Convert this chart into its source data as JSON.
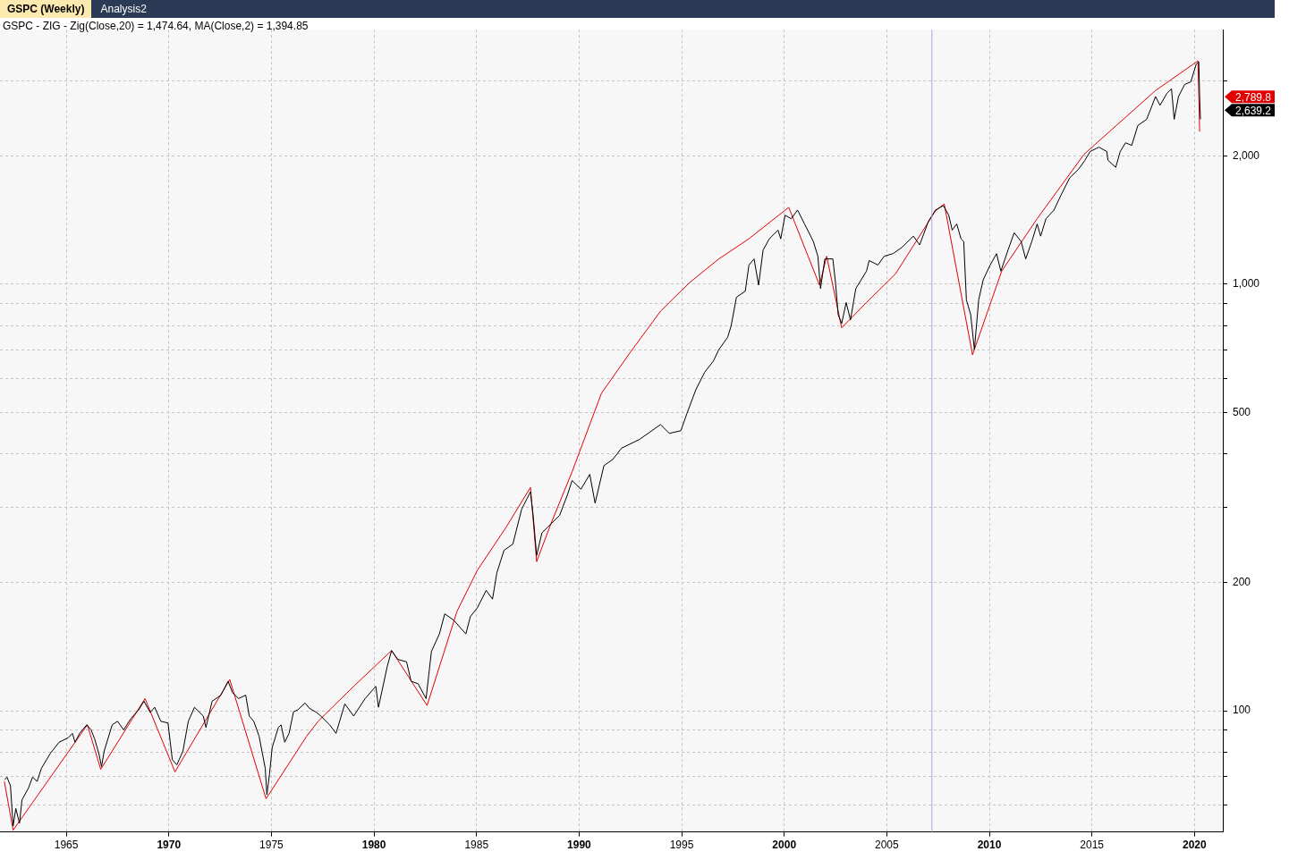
{
  "chart_data": {
    "type": "line",
    "title": "GSPC (Weekly)",
    "subtitle": "GSPC - ZIG - Zig(Close,20) = 1,474.64, MA(Close,2) = 1,394.85",
    "annotations": [
      "Analysis2",
      "2,789.8",
      "2,639.2"
    ],
    "log": "y",
    "grid": true,
    "xlim": [
      1961.77,
      2021.38
    ],
    "xticks": [
      1965,
      1970,
      1975,
      1980,
      1985,
      1990,
      1995,
      2000,
      2005,
      2010,
      2015,
      2020
    ],
    "ylim": [
      52,
      3950
    ],
    "yticks": [
      {
        "value": 60,
        "label": null
      },
      {
        "value": 70,
        "label": null
      },
      {
        "value": 80,
        "label": null
      },
      {
        "value": 90,
        "label": null
      },
      100,
      200,
      {
        "value": 300,
        "label": null
      },
      {
        "value": 400,
        "label": null
      },
      500,
      {
        "value": 600,
        "label": null
      },
      {
        "value": 700,
        "label": null
      },
      {
        "value": 800,
        "label": null
      },
      {
        "value": 900,
        "label": null
      },
      {
        "value": 1000,
        "label": "1,000"
      },
      {
        "value": 2000,
        "label": "2,000"
      },
      {
        "value": 3000,
        "label": null
      }
    ],
    "ref_lines": [
      {
        "axis": "x",
        "value": 2007.2,
        "color": "#a8a8e0"
      }
    ],
    "series": [
      {
        "color": "#000000",
        "x": [
          1962.0,
          1962.11,
          1962.28,
          1962.41,
          1962.54,
          1962.72,
          1962.84,
          1963.15,
          1963.36,
          1963.58,
          1963.79,
          1964.22,
          1964.65,
          1965.09,
          1965.3,
          1965.43,
          1965.65,
          1966.0,
          1966.21,
          1966.38,
          1966.59,
          1966.72,
          1966.85,
          1967.24,
          1967.5,
          1967.8,
          1968.15,
          1968.53,
          1968.79,
          1969.09,
          1969.31,
          1969.61,
          1969.96,
          1970.17,
          1970.39,
          1970.69,
          1970.95,
          1971.25,
          1971.68,
          1971.81,
          1972.11,
          1972.54,
          1972.89,
          1973.1,
          1973.4,
          1973.75,
          1973.92,
          1974.14,
          1974.4,
          1974.7,
          1974.78,
          1974.91,
          1975.04,
          1975.34,
          1975.47,
          1975.65,
          1975.86,
          1976.08,
          1976.29,
          1976.64,
          1976.85,
          1977.2,
          1977.41,
          1977.84,
          1978.15,
          1978.58,
          1979.01,
          1979.57,
          1980.09,
          1980.22,
          1980.65,
          1980.86,
          1981.16,
          1981.59,
          1981.81,
          1982.15,
          1982.54,
          1982.67,
          1982.8,
          1983.19,
          1983.45,
          1983.88,
          1984.48,
          1984.7,
          1985.04,
          1985.47,
          1985.78,
          1985.99,
          1986.34,
          1986.77,
          1987.2,
          1987.63,
          1987.76,
          1987.93,
          1988.19,
          1988.49,
          1989.05,
          1989.44,
          1989.66,
          1990.09,
          1990.52,
          1990.78,
          1991.21,
          1991.64,
          1992.07,
          1992.94,
          1993.97,
          1994.4,
          1994.96,
          1995.26,
          1995.69,
          1996.12,
          1996.55,
          1996.81,
          1997.24,
          1997.41,
          1997.67,
          1998.1,
          1998.28,
          1998.53,
          1998.75,
          1998.97,
          1999.27,
          1999.7,
          1999.83,
          2000.04,
          2000.34,
          2000.65,
          2000.99,
          2001.42,
          2001.64,
          2001.77,
          2001.98,
          2002.37,
          2002.5,
          2002.63,
          2002.8,
          2003.02,
          2003.23,
          2003.49,
          2004.01,
          2004.14,
          2004.57,
          2004.87,
          2005.3,
          2005.73,
          2006.3,
          2006.6,
          2007.03,
          2007.37,
          2007.76,
          2008.02,
          2008.19,
          2008.41,
          2008.62,
          2008.75,
          2008.88,
          2009.09,
          2009.27,
          2009.48,
          2009.7,
          2010.04,
          2010.35,
          2010.56,
          2010.91,
          2011.21,
          2011.55,
          2011.77,
          2012.07,
          2012.33,
          2012.5,
          2012.76,
          2013.15,
          2013.49,
          2013.92,
          2014.35,
          2014.66,
          2014.91,
          2015.34,
          2015.73,
          2015.78,
          2016.16,
          2016.38,
          2016.64,
          2016.94,
          2017.24,
          2017.67,
          2018.1,
          2018.32,
          2018.66,
          2018.88,
          2019.01,
          2019.22,
          2019.52,
          2019.82,
          2020.08,
          2020.21,
          2020.25,
          2020.29
        ],
        "values": [
          68.9,
          69.9,
          66.7,
          53.7,
          59.0,
          54.5,
          61.8,
          65.8,
          69.9,
          68.3,
          73.3,
          79.4,
          84.4,
          86.4,
          88.5,
          84.4,
          88.5,
          92.7,
          90.2,
          86.0,
          79.4,
          74.0,
          80.5,
          92.7,
          94.5,
          90.2,
          95.9,
          100.5,
          105.3,
          99.1,
          101.9,
          94.5,
          93.6,
          76.8,
          74.7,
          80.5,
          94.5,
          101.9,
          97.2,
          91.4,
          105.3,
          108.8,
          117.3,
          110.4,
          106.8,
          108.8,
          97.2,
          94.5,
          87.2,
          73.3,
          63.6,
          71.2,
          82.1,
          91.4,
          92.7,
          84.4,
          88.5,
          99.5,
          100.5,
          104.3,
          101.4,
          99.1,
          97.2,
          92.7,
          88.5,
          103.8,
          97.2,
          106.8,
          114.1,
          101.9,
          127.2,
          138.4,
          132.0,
          130.2,
          117.3,
          115.7,
          106.8,
          121.2,
          137.7,
          151.4,
          168.7,
          163.2,
          151.4,
          166.3,
          174.3,
          191.5,
          182.7,
          210.5,
          237.8,
          245.8,
          296.8,
          326.1,
          287.2,
          231.2,
          261.4,
          270.1,
          287.2,
          321.6,
          346.7,
          330.7,
          358.3,
          306.7,
          375.5,
          388.2,
          412.7,
          432.5,
          468.7,
          447.0,
          453.4,
          498.1,
          565.6,
          621.6,
          660.7,
          702.4,
          750.3,
          797.6,
          931.7,
          962.9,
          1109,
          1146,
          995,
          1202,
          1277,
          1339,
          1277,
          1451,
          1424,
          1492,
          1384,
          1259,
          1163,
          976.7,
          1146,
          1146,
          1009,
          848,
          809,
          905.7,
          824.7,
          976.7,
          1073,
          1136,
          1109,
          1163,
          1179,
          1219,
          1296,
          1236,
          1404,
          1492,
          1528,
          1451,
          1339,
          1384,
          1277,
          1259,
          918.8,
          848,
          702.4,
          918.8,
          1024,
          1109,
          1179,
          1073,
          1202,
          1320,
          1259,
          1146,
          1259,
          1384,
          1296,
          1424,
          1492,
          1617,
          1776,
          1861,
          1952,
          2046,
          2095,
          2046,
          1952,
          1879,
          2046,
          2145,
          2115,
          2356,
          2435,
          2753,
          2626,
          2804,
          2871,
          2435,
          2753,
          2939,
          2981,
          3276,
          3323,
          2753,
          2435
        ]
      },
      {
        "color": "#e00000",
        "x": [
          1961.98,
          1962.41,
          1966.03,
          1966.68,
          1968.84,
          1970.3,
          1972.97,
          1974.74,
          1976.72,
          1977.28,
          1979.01,
          1980.86,
          1982.59,
          1984.05,
          1985.04,
          1986.46,
          1987.63,
          1987.93,
          1988.62,
          1989.66,
          1991.09,
          1992.5,
          1993.97,
          1995.39,
          1996.81,
          1998.27,
          2000.22,
          2001.72,
          2002.07,
          2002.8,
          2004.01,
          2005.43,
          2007.37,
          2007.8,
          2009.18,
          2010.6,
          2012.33,
          2014.62,
          2018.1,
          2020.17,
          2020.25
        ],
        "values": [
          68.3,
          52.5,
          92.7,
          72.9,
          106.8,
          71.9,
          118.4,
          62.2,
          87.2,
          94.5,
          114.1,
          138.4,
          102.9,
          171.1,
          213.5,
          270.1,
          333.9,
          223.7,
          273.9,
          363.4,
          555.1,
          692.6,
          864.4,
          1009,
          1146,
          1277,
          1514,
          995,
          1163,
          790.3,
          906,
          1058,
          1485,
          1542,
          683,
          1073,
          1424,
          2017,
          2844,
          3338,
          2280
        ]
      }
    ]
  }
}
